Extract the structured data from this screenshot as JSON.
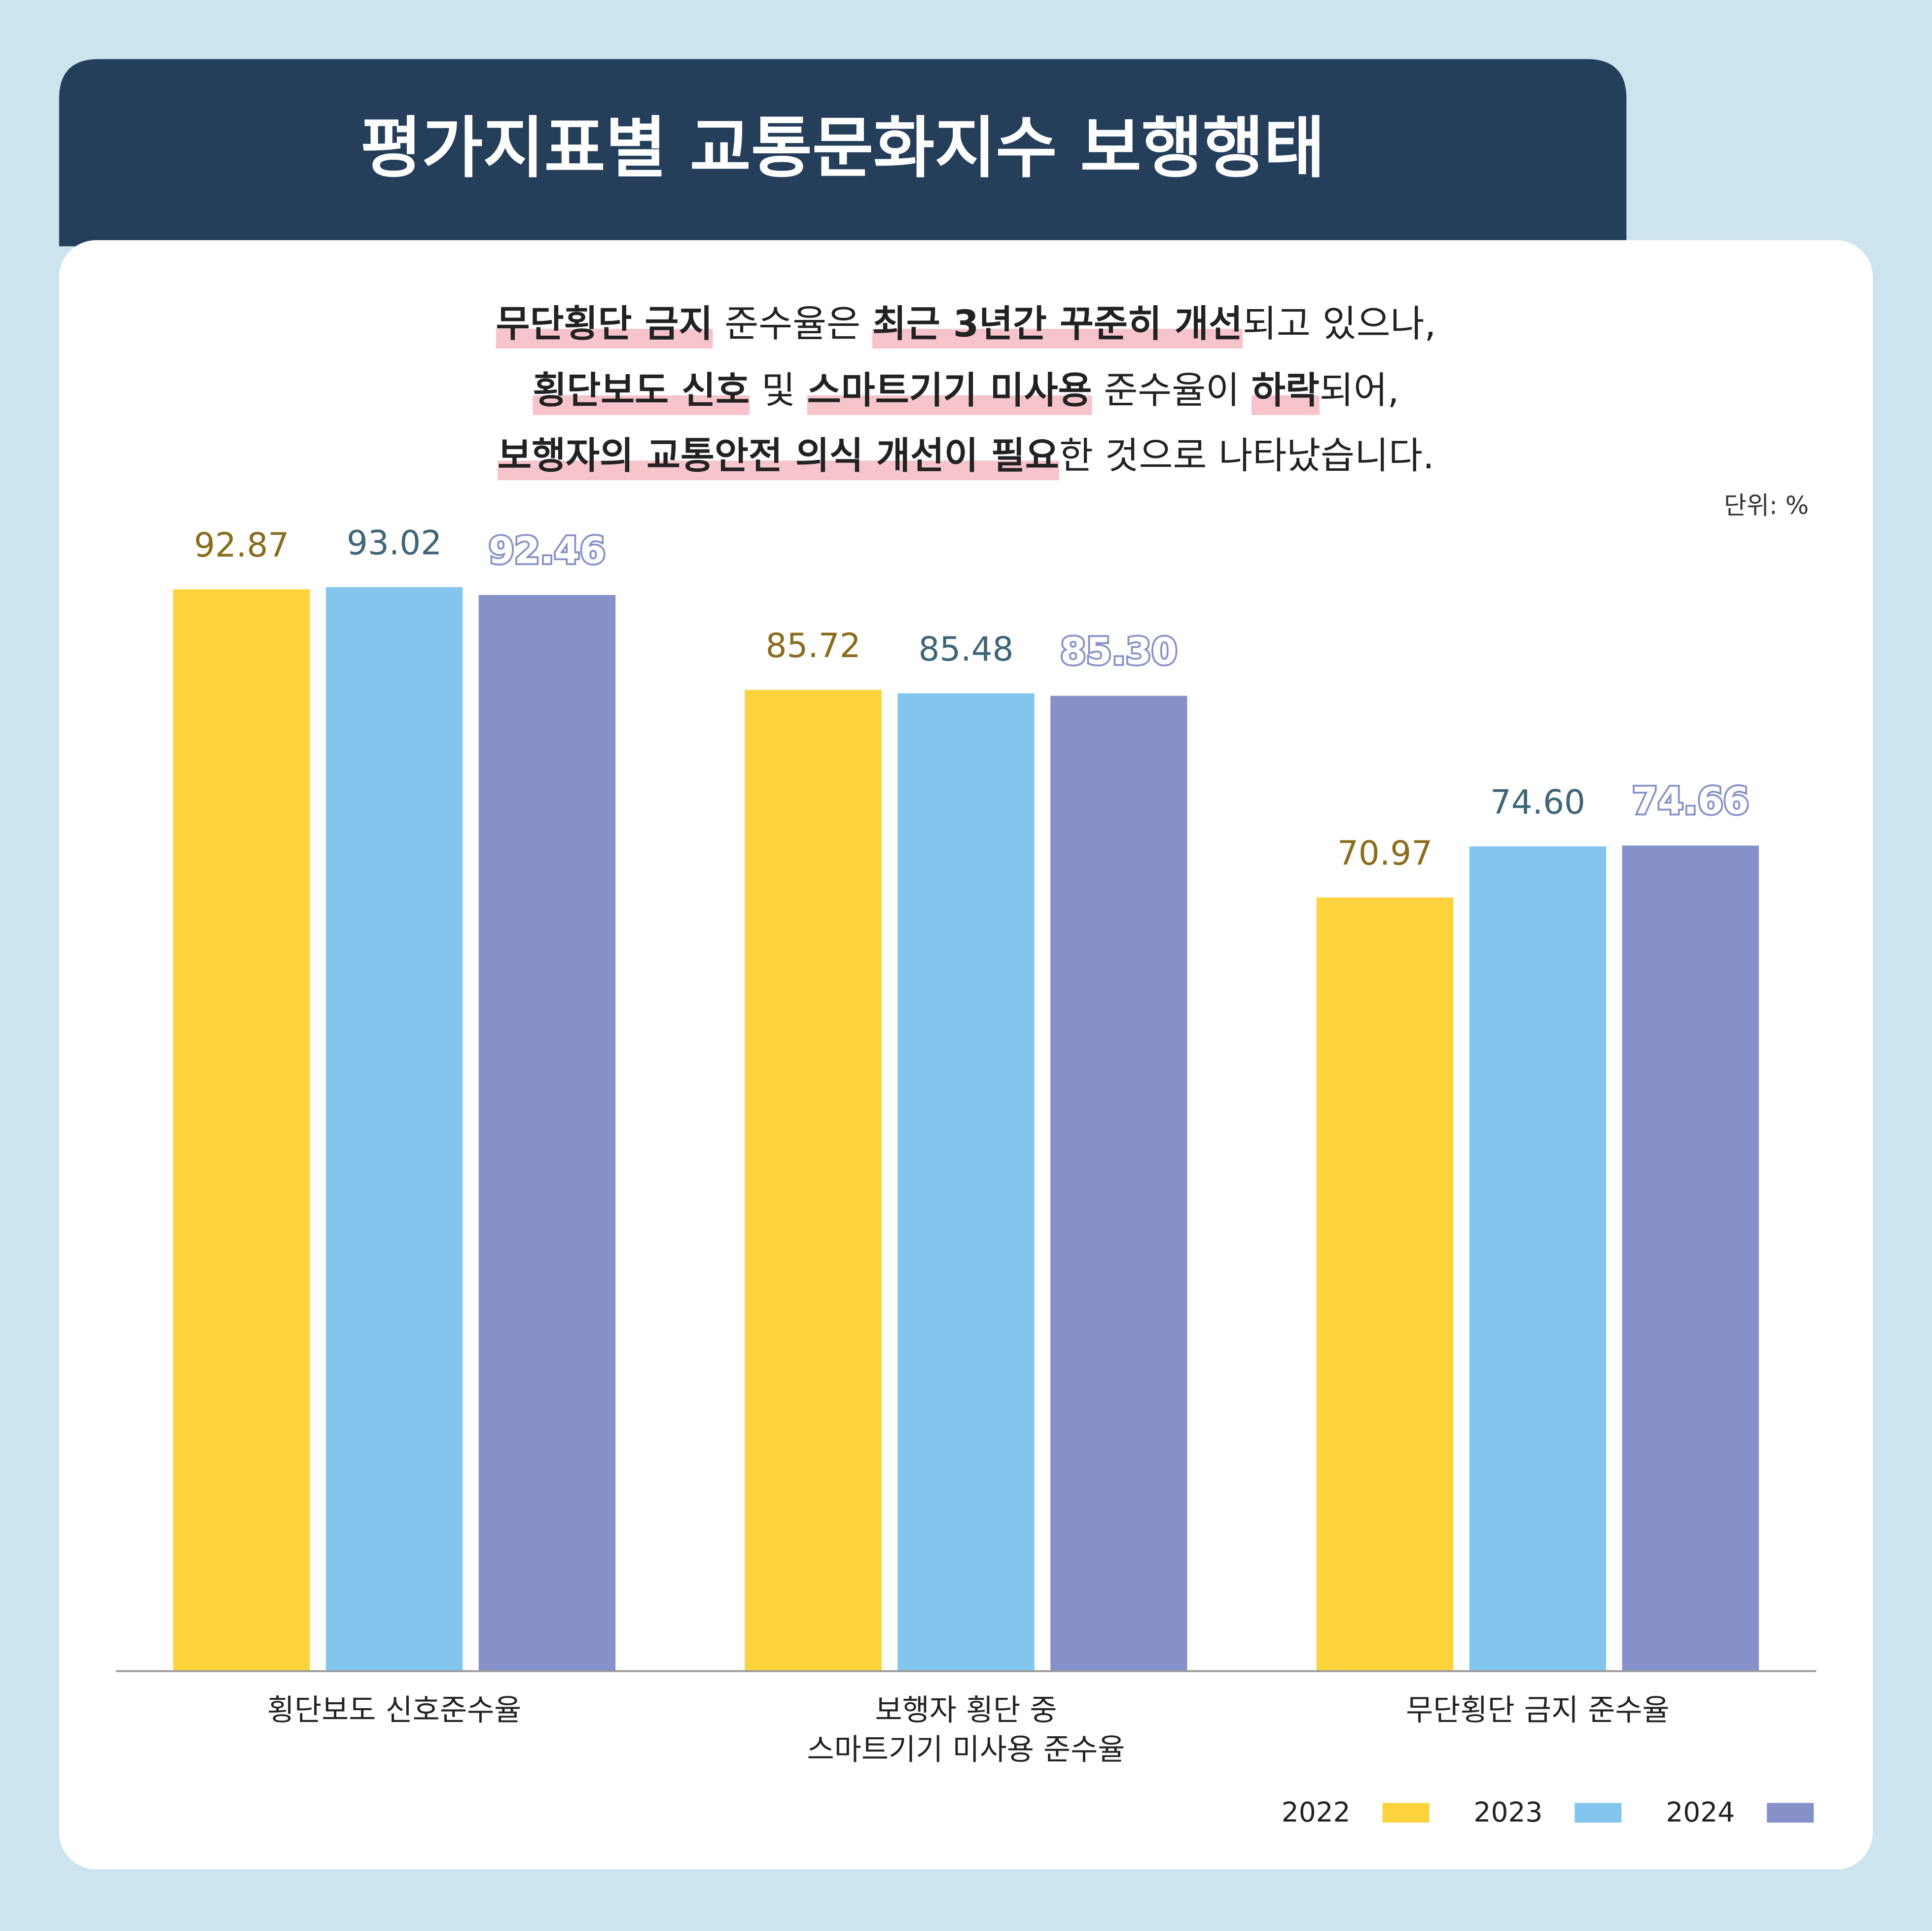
{
  "chart_data": {
    "type": "bar",
    "title": "평가지표별 교통문화지수 보행행태",
    "subtitle": [
      [
        {
          "text": "무단횡단 금지",
          "bold": true
        },
        {
          "text": " 준수율은 ",
          "bold": false
        },
        {
          "text": "최근 3년간 꾸준히 개선",
          "bold": true
        },
        {
          "text": "되고 있으나,",
          "bold": false
        }
      ],
      [
        {
          "text": "횡단보도 신호",
          "bold": true
        },
        {
          "text": " 및 ",
          "bold": false
        },
        {
          "text": "스마트기기 미사용",
          "bold": true
        },
        {
          "text": " 준수율이 ",
          "bold": false
        },
        {
          "text": "하락",
          "bold": true
        },
        {
          "text": "되어,",
          "bold": false
        }
      ],
      [
        {
          "text": "보행자의 교통안전 의식 개선이 필요",
          "bold": true
        },
        {
          "text": "한 것으로 나타났습니다.",
          "bold": false
        }
      ]
    ],
    "unit_label": "단위: %",
    "categories": [
      "횡단보도 신호준수율",
      "보행자 횡단 중\n스마트기기 미사용 준수율",
      "무단횡단 금지 준수율"
    ],
    "series": [
      {
        "name": "2022",
        "color": "#fcd33d",
        "label_color": "#8a6d1e",
        "values": [
          92.87,
          85.72,
          70.97
        ],
        "value_labels": [
          "92.87",
          "85.72",
          "70.97"
        ]
      },
      {
        "name": "2023",
        "color": "#82c6ee",
        "label_color": "#3e6678",
        "values": [
          93.02,
          85.48,
          74.6
        ],
        "value_labels": [
          "93.02",
          "85.48",
          "74.60"
        ]
      },
      {
        "name": "2024",
        "color": "#8591c8",
        "label_color": "#8591c8",
        "outlined_labels": true,
        "values": [
          92.46,
          85.3,
          74.66
        ],
        "value_labels": [
          "92.46",
          "85.30",
          "74.66"
        ]
      }
    ],
    "ylim": [
      16,
      100
    ],
    "legend": "bottom-right"
  }
}
